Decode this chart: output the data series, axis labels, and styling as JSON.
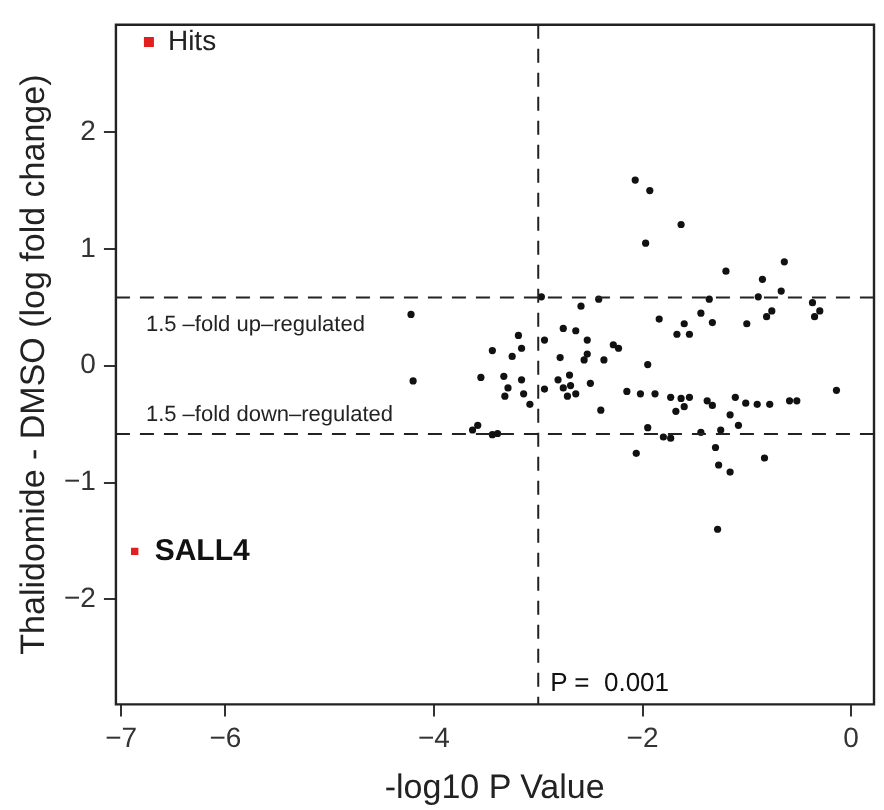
{
  "chart_data": {
    "type": "scatter",
    "xlabel": "-log10 P Value",
    "ylabel": "Thalidomide - DMSO (log fold change)",
    "xlim": [
      -7.05,
      0.22
    ],
    "xticks": [
      -7,
      -6,
      -4,
      -2,
      0
    ],
    "ylim": [
      -2.9,
      2.92
    ],
    "yticks": [
      -2,
      -1,
      0,
      1,
      2
    ],
    "grid": false,
    "legend": "top left",
    "marker": "circle",
    "series": [
      {
        "name": "Hits",
        "color": "#e02020",
        "marker": "square",
        "x": [
          -6.87
        ],
        "values": [
          -1.59
        ]
      },
      {
        "color": "#111111",
        "x": [
          -2.07,
          -1.93,
          -1.63,
          -1.97,
          -1.2,
          -0.64,
          -0.85,
          -0.67,
          -2.97,
          -2.42,
          -2.59,
          -1.36,
          -0.89,
          -0.37,
          -0.3,
          -0.35,
          -0.76,
          -0.81,
          -1.0,
          -1.84,
          -1.6,
          -1.44,
          -1.33,
          -1.67,
          -1.55,
          -2.76,
          -2.64,
          -2.53,
          -2.28,
          -2.23,
          -2.53,
          -2.56,
          -2.79,
          -2.37,
          -1.95,
          -3.16,
          -3.19,
          -2.94,
          -0.14,
          -2.15,
          -2.02,
          -1.88,
          -1.73,
          -1.63,
          -1.55,
          -1.6,
          -1.68,
          -1.38,
          -1.33,
          -1.11,
          -1.01,
          -0.9,
          -0.78,
          -0.59,
          -0.52,
          -1.16,
          -1.08,
          -1.25,
          -1.44,
          -1.95,
          -2.4,
          -3.16,
          -3.14,
          -3.08,
          -2.94,
          -2.81,
          -2.76,
          -2.69,
          -2.64,
          -2.72,
          -2.5,
          -2.7,
          -4.22,
          -4.2,
          -3.44,
          -3.25,
          -3.55,
          -3.33,
          -3.29,
          -3.32,
          -3.63,
          -3.58,
          -3.44,
          -3.39,
          -2.06,
          -1.8,
          -1.73,
          -1.3,
          -1.27,
          -1.16,
          -0.83,
          -1.28
        ],
        "values": [
          1.59,
          1.5,
          1.21,
          1.05,
          0.81,
          0.89,
          0.74,
          0.64,
          0.59,
          0.57,
          0.51,
          0.57,
          0.59,
          0.54,
          0.47,
          0.42,
          0.47,
          0.42,
          0.36,
          0.4,
          0.36,
          0.45,
          0.37,
          0.27,
          0.27,
          0.32,
          0.3,
          0.22,
          0.18,
          0.15,
          0.1,
          0.05,
          0.07,
          0.05,
          0.01,
          0.15,
          0.26,
          0.22,
          -0.21,
          -0.22,
          -0.24,
          -0.24,
          -0.27,
          -0.28,
          -0.27,
          -0.35,
          -0.39,
          -0.3,
          -0.34,
          -0.27,
          -0.32,
          -0.33,
          -0.33,
          -0.3,
          -0.3,
          -0.42,
          -0.51,
          -0.55,
          -0.57,
          -0.53,
          -0.38,
          -0.12,
          -0.24,
          -0.33,
          -0.2,
          -0.12,
          -0.19,
          -0.17,
          -0.24,
          -0.26,
          -0.15,
          -0.08,
          0.44,
          -0.13,
          0.13,
          0.08,
          -0.1,
          -0.09,
          -0.19,
          -0.26,
          -0.55,
          -0.51,
          -0.59,
          -0.58,
          -0.75,
          -0.61,
          -0.62,
          -0.7,
          -0.85,
          -0.91,
          -0.79,
          -1.4
        ]
      }
    ],
    "ref_lines": [
      {
        "axis": "y",
        "value": 0.585,
        "label": "1.5 –fold up–regulated",
        "line_style": "dashed"
      },
      {
        "axis": "y",
        "value": -0.585,
        "label": "1.5 –fold down–regulated",
        "line_style": "dashed"
      },
      {
        "axis": "x",
        "value": -3,
        "line_style": "dashed"
      }
    ],
    "annotations": [
      {
        "text": "SALL4",
        "x": -6.87,
        "y": -1.59
      },
      "P =  0.001"
    ]
  }
}
